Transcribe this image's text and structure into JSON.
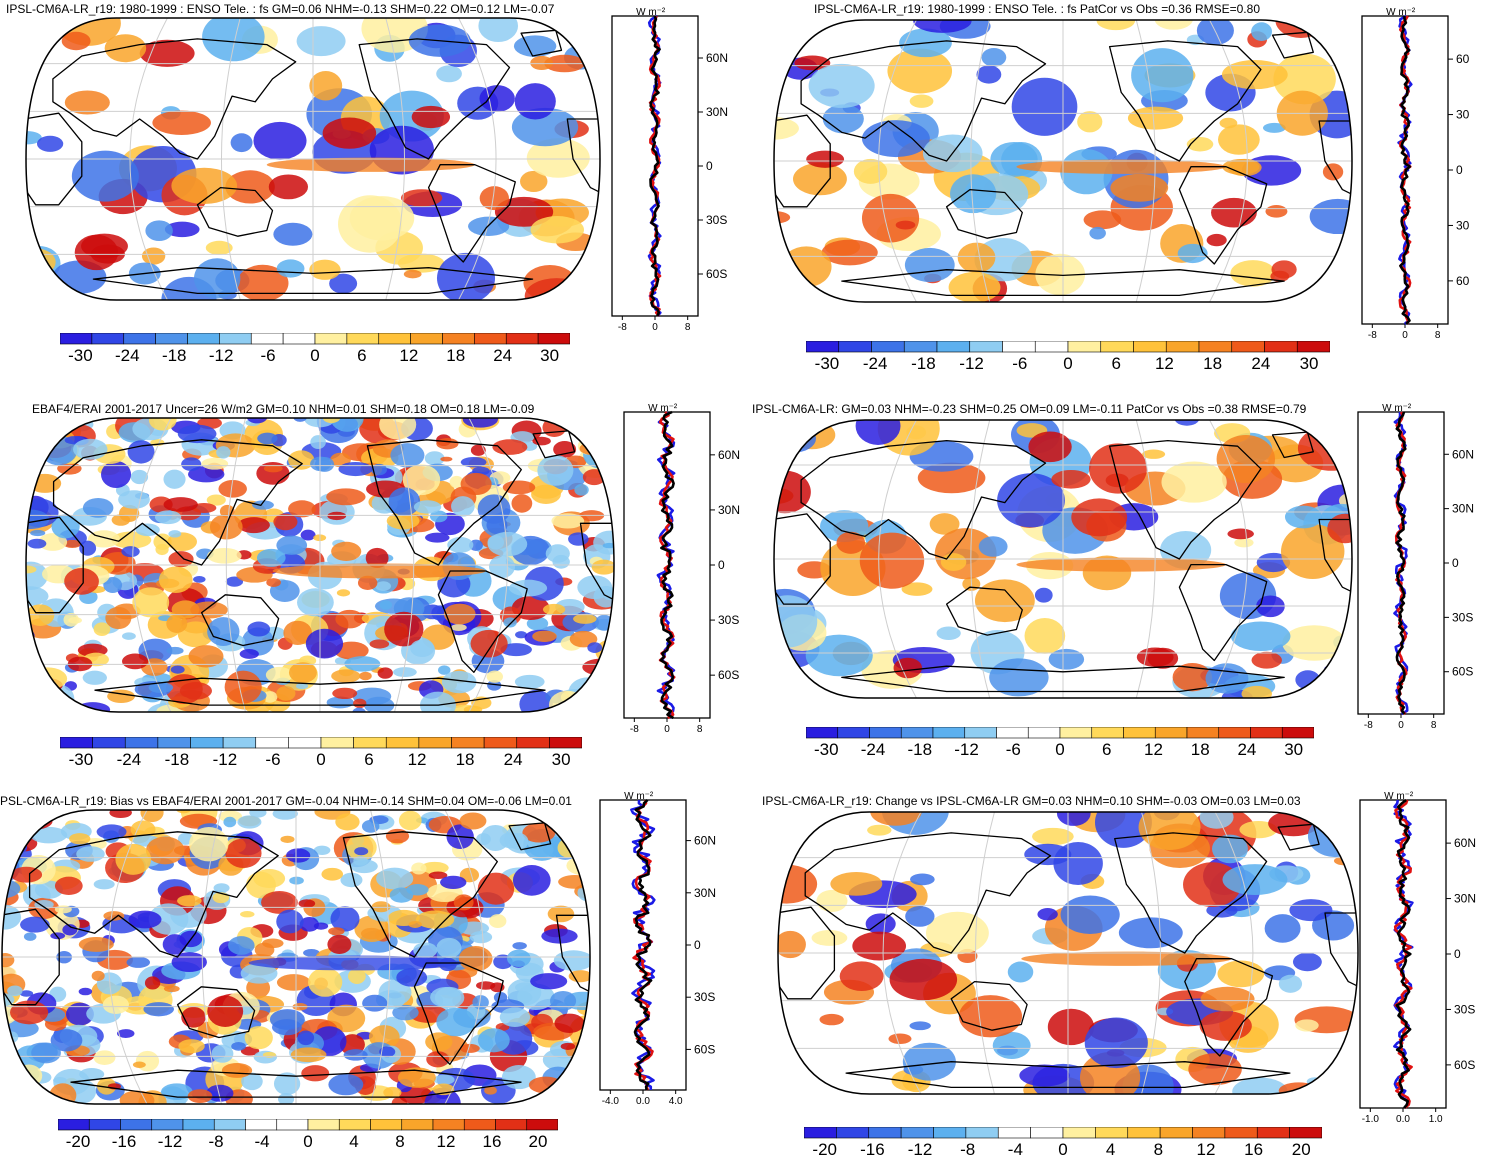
{
  "panels": [
    {
      "id": "p1",
      "title": "IPSL-CM6A-LR_r19: 1980-1999 : ENSO Tele. : fs GM=0.06 NHM=-0.13 SHM=0.22 OM=0.12 LM=-0.07",
      "lat_labels": [
        "60N",
        "30N",
        "0",
        "30S",
        "60S"
      ],
      "profile_x_ticks": [
        "-8",
        "0",
        "8"
      ],
      "profile_units": "W m⁻²",
      "colorbar_labels": [
        "-30",
        "-24",
        "-18",
        "-12",
        "-6",
        "0",
        "6",
        "12",
        "18",
        "24",
        "30"
      ]
    },
    {
      "id": "p2",
      "title": "IPSL-CM6A-LR_r19: 1980-1999 : ENSO Tele. : fs PatCor vs Obs =0.36 RMSE=0.80",
      "lat_labels": [
        "60",
        "30",
        "0",
        "30",
        "60"
      ],
      "profile_x_ticks": [
        "-8",
        "0",
        "8"
      ],
      "profile_units": "W m⁻²",
      "colorbar_labels": [
        "-30",
        "-24",
        "-18",
        "-12",
        "-6",
        "0",
        "6",
        "12",
        "18",
        "24",
        "30"
      ]
    },
    {
      "id": "p3",
      "title": "EBAF4/ERAI 2001-2017 Uncer=26 W/m2 GM=0.10 NHM=0.01 SHM=0.18 OM=0.18 LM=-0.09",
      "lat_labels": [
        "60N",
        "30N",
        "0",
        "30S",
        "60S"
      ],
      "profile_x_ticks": [
        "-8",
        "0",
        "8"
      ],
      "profile_units": "W m⁻²",
      "colorbar_labels": [
        "-30",
        "-24",
        "-18",
        "-12",
        "-6",
        "0",
        "6",
        "12",
        "18",
        "24",
        "30"
      ]
    },
    {
      "id": "p4",
      "title": "IPSL-CM6A-LR: GM=0.03 NHM=-0.23 SHM=0.25 OM=0.09 LM=-0.11 PatCor vs Obs =0.38 RMSE=0.79",
      "lat_labels": [
        "60N",
        "30N",
        "0",
        "30S",
        "60S"
      ],
      "profile_x_ticks": [
        "-8",
        "0",
        "8"
      ],
      "profile_units": "W m⁻²",
      "colorbar_labels": [
        "-30",
        "-24",
        "-18",
        "-12",
        "-6",
        "0",
        "6",
        "12",
        "18",
        "24",
        "30"
      ]
    },
    {
      "id": "p5",
      "title": "PSL-CM6A-LR_r19: Bias vs EBAF4/ERAI 2001-2017 GM=-0.04 NHM=-0.14 SHM=0.04 OM=-0.06 LM=0.01",
      "lat_labels": [
        "60N",
        "30N",
        "0",
        "30S",
        "60S"
      ],
      "profile_x_ticks": [
        "-4.0",
        "0.0",
        "4.0"
      ],
      "profile_units": "W m⁻²",
      "colorbar_labels": [
        "-20",
        "-16",
        "-12",
        "-8",
        "-4",
        "0",
        "4",
        "8",
        "12",
        "16",
        "20"
      ]
    },
    {
      "id": "p6",
      "title": "IPSL-CM6A-LR_r19: Change vs IPSL-CM6A-LR GM=0.03 NHM=0.10 SHM=-0.03 OM=0.03 LM=0.03",
      "lat_labels": [
        "60N",
        "30N",
        "0",
        "30S",
        "60S"
      ],
      "profile_x_ticks": [
        "-1.0",
        "0.0",
        "1.0"
      ],
      "profile_units": "W m⁻²",
      "colorbar_labels": [
        "-20",
        "-16",
        "-12",
        "-8",
        "-4",
        "0",
        "4",
        "8",
        "12",
        "16",
        "20"
      ]
    }
  ],
  "legend_colors": [
    "#2a1ee0",
    "#3046e6",
    "#3d73e8",
    "#4f93ea",
    "#5cb0ef",
    "#8fcdf2",
    "#ffffff",
    "#ffffff",
    "#fff0a0",
    "#ffd95a",
    "#ffc23a",
    "#f9a52a",
    "#f58222",
    "#ef5a1a",
    "#e23016",
    "#cc0c0c"
  ],
  "profile_colors": {
    "model": "#e01010",
    "obs": "#1a1ae6",
    "mean": "#000000"
  }
}
